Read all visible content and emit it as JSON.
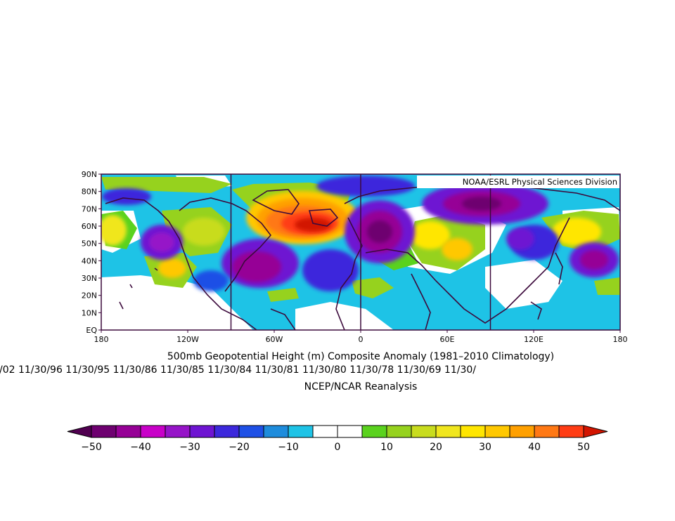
{
  "map": {
    "credit": "NOAA/ESRL Physical Sciences Division",
    "lat_labels": [
      "90N",
      "80N",
      "70N",
      "60N",
      "50N",
      "40N",
      "30N",
      "20N",
      "10N",
      "EQ"
    ],
    "lon_labels": [
      "180",
      "120W",
      "60W",
      "0",
      "60E",
      "120E",
      "180"
    ]
  },
  "captions": {
    "title": "500mb Geopotential Height (m) Composite Anomaly (1981–2010 Climatology)",
    "dates": "/02 11/30/96 11/30/95 11/30/86 11/30/85 11/30/84 11/30/81 11/30/80 11/30/78 11/30/69 11/30/",
    "source": "NCEP/NCAR Reanalysis"
  },
  "colorbar": {
    "colors": [
      "#6e0070",
      "#960096",
      "#c800c8",
      "#9614c8",
      "#6e14d2",
      "#3c28dc",
      "#1e50e6",
      "#1e8cdc",
      "#1ec3e6",
      "#ffffff",
      "#ffffff",
      "#5ad21e",
      "#96d21e",
      "#c8dc1e",
      "#f0e61e",
      "#ffe600",
      "#ffc800",
      "#ffa000",
      "#ff7814",
      "#ff3c14"
    ],
    "min_color": "#500050",
    "max_color": "#d21400",
    "tick_labels": [
      "−50",
      "−40",
      "−30",
      "−20",
      "−10",
      "0",
      "10",
      "20",
      "30",
      "40",
      "50"
    ]
  }
}
